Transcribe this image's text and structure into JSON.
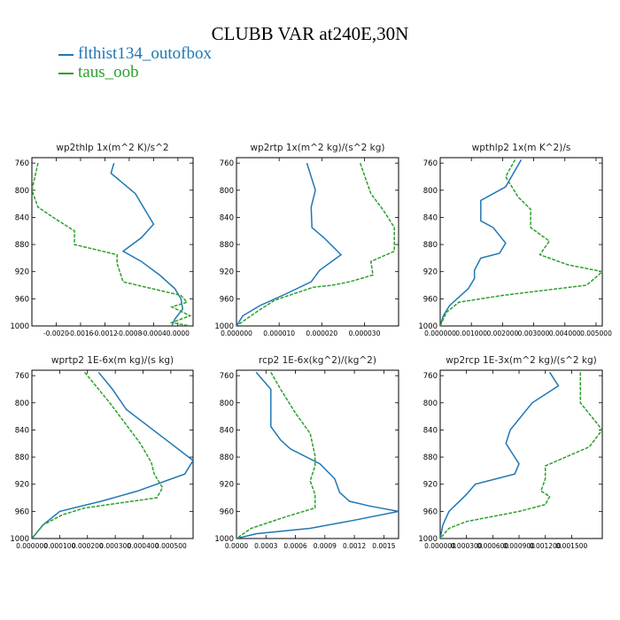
{
  "title": "CLUBB VAR at240E,30N",
  "legend": [
    {
      "label": "flthist134_outofbox",
      "color": "#1f77b4"
    },
    {
      "label": "taus_oob",
      "color": "#2ca02c"
    }
  ],
  "chart_data": [
    {
      "type": "line",
      "title": "wp2thlp  1x(m^2 K)/s^2",
      "xlim": [
        -0.0024,
        0.00025
      ],
      "ylim": [
        1000,
        752
      ],
      "xticks": [
        "-0.0020",
        "-0.0016",
        "-0.0012",
        "-0.0008",
        "-0.0004",
        "0.0000"
      ],
      "xtick_values": [
        -0.002,
        -0.0016,
        -0.0012,
        -0.0008,
        -0.0004,
        0.0
      ],
      "yticks": [
        760,
        800,
        840,
        880,
        920,
        960,
        1000
      ],
      "series": [
        {
          "name": "flthist134_outofbox",
          "color": "#1f77b4",
          "points": [
            [
              -0.00105,
              760
            ],
            [
              -0.0011,
              775
            ],
            [
              -0.0007,
              805
            ],
            [
              -0.0005,
              835
            ],
            [
              -0.0004,
              850
            ],
            [
              -0.0006,
              870
            ],
            [
              -0.0009,
              890
            ],
            [
              -0.0006,
              905
            ],
            [
              -0.0003,
              925
            ],
            [
              -5e-05,
              945
            ],
            [
              5e-05,
              960
            ],
            [
              8e-05,
              975
            ],
            [
              -5e-05,
              990
            ],
            [
              -0.0001,
              1000
            ]
          ]
        },
        {
          "name": "taus_oob",
          "color": "#2ca02c",
          "points": [
            [
              -0.0023,
              760
            ],
            [
              -0.0024,
              800
            ],
            [
              -0.0023,
              825
            ],
            [
              -0.002,
              843
            ],
            [
              -0.0017,
              860
            ],
            [
              -0.0017,
              880
            ],
            [
              -0.001,
              895
            ],
            [
              -0.001,
              908
            ],
            [
              -0.0009,
              935
            ],
            [
              5e-05,
              955
            ],
            [
              0.00015,
              965
            ],
            [
              -0.0001,
              972
            ],
            [
              0.0002,
              985
            ],
            [
              -0.0001,
              995
            ],
            [
              0.0002,
              1000
            ]
          ]
        }
      ]
    },
    {
      "type": "line",
      "title": "wp2rtp  1x(m^2 kg)/(s^2 kg)",
      "xlim": [
        0.0,
        3.8e-05
      ],
      "ylim": [
        1000,
        752
      ],
      "xticks": [
        "0.000000",
        "0.000010",
        "0.000020",
        "0.000030"
      ],
      "xtick_values": [
        0.0,
        1e-05,
        2e-05,
        3e-05
      ],
      "yticks": [
        760,
        800,
        840,
        880,
        920,
        960,
        1000
      ],
      "series": [
        {
          "name": "flthist134_outofbox",
          "color": "#1f77b4",
          "points": [
            [
              1.65e-05,
              760
            ],
            [
              1.85e-05,
              800
            ],
            [
              1.75e-05,
              825
            ],
            [
              1.77e-05,
              855
            ],
            [
              2.05e-05,
              870
            ],
            [
              2.45e-05,
              895
            ],
            [
              1.95e-05,
              918
            ],
            [
              1.75e-05,
              935
            ],
            [
              1.15e-05,
              953
            ],
            [
              5.5e-06,
              970
            ],
            [
              1.5e-06,
              985
            ],
            [
              0.0,
              1000
            ]
          ]
        },
        {
          "name": "taus_oob",
          "color": "#2ca02c",
          "points": [
            [
              2.9e-05,
              760
            ],
            [
              3.15e-05,
              805
            ],
            [
              3.45e-05,
              830
            ],
            [
              3.7e-05,
              855
            ],
            [
              3.7e-05,
              890
            ],
            [
              3.15e-05,
              905
            ],
            [
              3.2e-05,
              925
            ],
            [
              2.65e-05,
              935
            ],
            [
              2.25e-05,
              940
            ],
            [
              1.8e-05,
              943
            ],
            [
              9e-06,
              962
            ],
            [
              5e-06,
              978
            ],
            [
              0.0,
              1000
            ]
          ]
        }
      ]
    },
    {
      "type": "line",
      "title": "wpthlp2  1x(m K^2)/s",
      "xlim": [
        0.0,
        0.0052
      ],
      "ylim": [
        1000,
        752
      ],
      "xticks": [
        "0.000000",
        "0.001000",
        "0.002000",
        "0.003000",
        "0.004000",
        "0.005000"
      ],
      "xtick_values": [
        0.0,
        0.001,
        0.002,
        0.003,
        0.004,
        0.005
      ],
      "yticks": [
        760,
        800,
        840,
        880,
        920,
        960,
        1000
      ],
      "series": [
        {
          "name": "flthist134_outofbox",
          "color": "#1f77b4",
          "points": [
            [
              0.0026,
              755
            ],
            [
              0.0021,
              795
            ],
            [
              0.0013,
              815
            ],
            [
              0.0013,
              845
            ],
            [
              0.0017,
              855
            ],
            [
              0.0021,
              878
            ],
            [
              0.0019,
              893
            ],
            [
              0.0013,
              900
            ],
            [
              0.0011,
              918
            ],
            [
              0.0011,
              930
            ],
            [
              0.0009,
              945
            ],
            [
              0.0003,
              970
            ],
            [
              0.0001,
              985
            ],
            [
              0.0,
              1000
            ]
          ]
        },
        {
          "name": "taus_oob",
          "color": "#2ca02c",
          "points": [
            [
              0.0024,
              755
            ],
            [
              0.0021,
              780
            ],
            [
              0.0025,
              810
            ],
            [
              0.0029,
              828
            ],
            [
              0.0029,
              855
            ],
            [
              0.0035,
              875
            ],
            [
              0.0032,
              895
            ],
            [
              0.0041,
              910
            ],
            [
              0.0052,
              920
            ],
            [
              0.0047,
              940
            ],
            [
              0.002,
              955
            ],
            [
              0.0006,
              965
            ],
            [
              0.0002,
              980
            ],
            [
              0.0,
              1000
            ]
          ]
        }
      ]
    },
    {
      "type": "line",
      "title": "wprtp2  1E-6x(m kg)/(s kg)",
      "xlim": [
        0.0,
        0.00058
      ],
      "ylim": [
        1000,
        752
      ],
      "xticks": [
        "0.000000",
        "0.000100",
        "0.000200",
        "0.000300",
        "0.000400",
        "0.000500"
      ],
      "xtick_values": [
        0.0,
        0.0001,
        0.0002,
        0.0003,
        0.0004,
        0.0005
      ],
      "yticks": [
        760,
        800,
        840,
        880,
        920,
        960,
        1000
      ],
      "series": [
        {
          "name": "flthist134_outofbox",
          "color": "#1f77b4",
          "points": [
            [
              0.00024,
              755
            ],
            [
              0.00029,
              780
            ],
            [
              0.00034,
              810
            ],
            [
              0.0005,
              860
            ],
            [
              0.00058,
              885
            ],
            [
              0.00055,
              905
            ],
            [
              0.00038,
              930
            ],
            [
              0.00025,
              945
            ],
            [
              0.0001,
              960
            ],
            [
              4e-05,
              980
            ],
            [
              0.0,
              1000
            ]
          ]
        },
        {
          "name": "taus_oob",
          "color": "#2ca02c",
          "points": [
            [
              0.00019,
              755
            ],
            [
              0.00028,
              800
            ],
            [
              0.00039,
              860
            ],
            [
              0.00043,
              888
            ],
            [
              0.00044,
              905
            ],
            [
              0.00047,
              925
            ],
            [
              0.00045,
              940
            ],
            [
              0.00019,
              955
            ],
            [
              0.00011,
              965
            ],
            [
              4e-05,
              980
            ],
            [
              0.0,
              1000
            ]
          ]
        }
      ]
    },
    {
      "type": "line",
      "title": "rcp2  1E-6x(kg^2)/(kg^2)",
      "xlim": [
        0.0,
        0.00165
      ],
      "ylim": [
        1000,
        752
      ],
      "xticks": [
        "0.0000",
        "0.0003",
        "0.0006",
        "0.0009",
        "0.0012",
        "0.0015"
      ],
      "xtick_values": [
        0.0,
        0.0003,
        0.0006,
        0.0009,
        0.0012,
        0.0015
      ],
      "yticks": [
        760,
        800,
        840,
        880,
        920,
        960,
        1000
      ],
      "series": [
        {
          "name": "flthist134_outofbox",
          "color": "#1f77b4",
          "points": [
            [
              0.0002,
              755
            ],
            [
              0.00035,
              780
            ],
            [
              0.00035,
              808
            ],
            [
              0.00035,
              835
            ],
            [
              0.00045,
              855
            ],
            [
              0.00055,
              868
            ],
            [
              0.00085,
              890
            ],
            [
              0.001,
              912
            ],
            [
              0.00105,
              932
            ],
            [
              0.00115,
              945
            ],
            [
              0.00135,
              952
            ],
            [
              0.00165,
              960
            ],
            [
              0.0012,
              973
            ],
            [
              0.00075,
              985
            ],
            [
              0.0002,
              993
            ],
            [
              0.0,
              1000
            ]
          ]
        },
        {
          "name": "taus_oob",
          "color": "#2ca02c",
          "points": [
            [
              0.00035,
              755
            ],
            [
              0.00045,
              780
            ],
            [
              0.0006,
              815
            ],
            [
              0.00075,
              845
            ],
            [
              0.0008,
              878
            ],
            [
              0.0008,
              893
            ],
            [
              0.00075,
              915
            ],
            [
              0.0008,
              935
            ],
            [
              0.0008,
              955
            ],
            [
              0.0005,
              968
            ],
            [
              0.00015,
              985
            ],
            [
              0.0,
              1000
            ]
          ]
        }
      ]
    },
    {
      "type": "line",
      "title": "wp2rcp  1E-3x(m^2 kg)/(s^2 kg)",
      "xlim": [
        0.0,
        0.00185
      ],
      "ylim": [
        1000,
        752
      ],
      "xticks": [
        "0.000000",
        "0.000300",
        "0.000600",
        "0.000900",
        "0.001200",
        "0.001500"
      ],
      "xtick_values": [
        0.0,
        0.0003,
        0.0006,
        0.0009,
        0.0012,
        0.0015
      ],
      "yticks": [
        760,
        800,
        840,
        880,
        920,
        960,
        1000
      ],
      "series": [
        {
          "name": "flthist134_outofbox",
          "color": "#1f77b4",
          "points": [
            [
              0.00125,
              755
            ],
            [
              0.00135,
              775
            ],
            [
              0.00105,
              800
            ],
            [
              0.0008,
              840
            ],
            [
              0.00075,
              860
            ],
            [
              0.0009,
              890
            ],
            [
              0.00085,
              905
            ],
            [
              0.0004,
              920
            ],
            [
              0.0003,
              935
            ],
            [
              0.0001,
              960
            ],
            [
              3e-05,
              980
            ],
            [
              0.0,
              1000
            ]
          ]
        },
        {
          "name": "taus_oob",
          "color": "#2ca02c",
          "points": [
            [
              0.0016,
              755
            ],
            [
              0.0016,
              800
            ],
            [
              0.00185,
              840
            ],
            [
              0.0017,
              865
            ],
            [
              0.0012,
              893
            ],
            [
              0.0012,
              912
            ],
            [
              0.00115,
              930
            ],
            [
              0.00125,
              938
            ],
            [
              0.0012,
              950
            ],
            [
              0.0009,
              960
            ],
            [
              0.0003,
              975
            ],
            [
              0.0001,
              985
            ],
            [
              0.0,
              1000
            ]
          ]
        }
      ]
    }
  ]
}
